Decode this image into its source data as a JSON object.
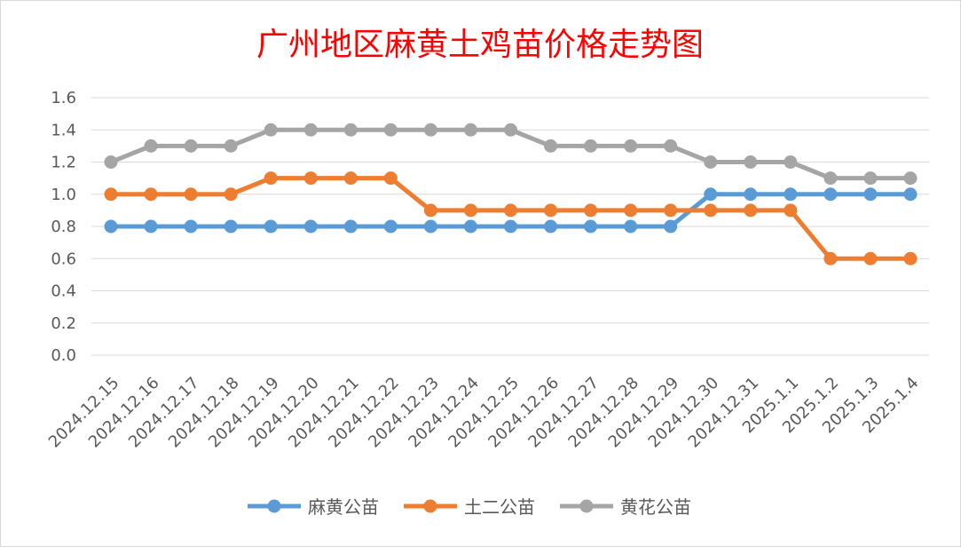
{
  "chart_data": {
    "type": "line",
    "title": "广州地区麻黄土鸡苗价格走势图",
    "xlabel": "",
    "ylabel": "",
    "categories": [
      "2024.12.15",
      "2024.12.16",
      "2024.12.17",
      "2024.12.18",
      "2024.12.19",
      "2024.12.20",
      "2024.12.21",
      "2024.12.22",
      "2024.12.23",
      "2024.12.24",
      "2024.12.25",
      "2024.12.26",
      "2024.12.27",
      "2024.12.28",
      "2024.12.29",
      "2024.12.30",
      "2024.12.31",
      "2025.1.1",
      "2025.1.2",
      "2025.1.3",
      "2025.1.4"
    ],
    "ylim": [
      0,
      1.6
    ],
    "yticks": [
      "0.0",
      "0.2",
      "0.4",
      "0.6",
      "0.8",
      "1.0",
      "1.2",
      "1.4",
      "1.6"
    ],
    "grid": true,
    "legend_position": "bottom",
    "series": [
      {
        "name": "麻黄公苗",
        "color": "#5b9bd5",
        "values": [
          0.8,
          0.8,
          0.8,
          0.8,
          0.8,
          0.8,
          0.8,
          0.8,
          0.8,
          0.8,
          0.8,
          0.8,
          0.8,
          0.8,
          0.8,
          1.0,
          1.0,
          1.0,
          1.0,
          1.0,
          1.0
        ]
      },
      {
        "name": "土二公苗",
        "color": "#ed7d31",
        "values": [
          1.0,
          1.0,
          1.0,
          1.0,
          1.1,
          1.1,
          1.1,
          1.1,
          0.9,
          0.9,
          0.9,
          0.9,
          0.9,
          0.9,
          0.9,
          0.9,
          0.9,
          0.9,
          0.6,
          0.6,
          0.6
        ]
      },
      {
        "name": "黄花公苗",
        "color": "#a5a5a5",
        "values": [
          1.2,
          1.3,
          1.3,
          1.3,
          1.4,
          1.4,
          1.4,
          1.4,
          1.4,
          1.4,
          1.4,
          1.3,
          1.3,
          1.3,
          1.3,
          1.2,
          1.2,
          1.2,
          1.1,
          1.1,
          1.1
        ]
      }
    ]
  }
}
